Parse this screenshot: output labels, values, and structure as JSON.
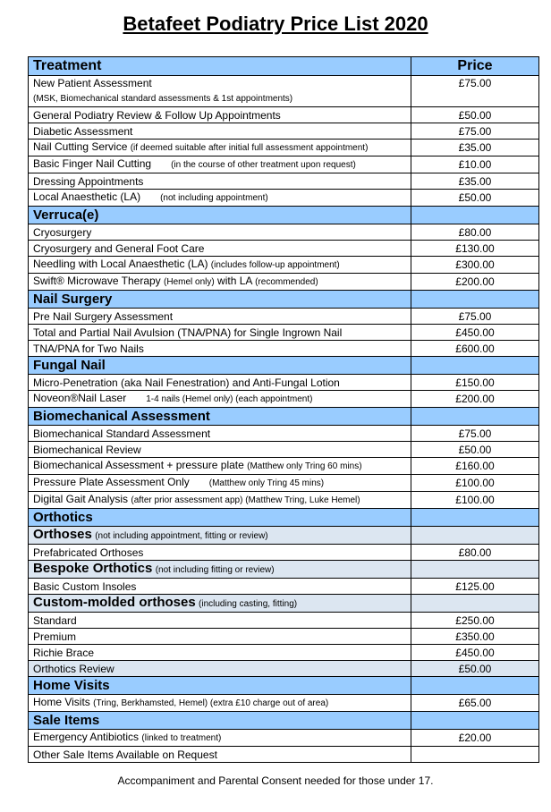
{
  "title": "Betafeet Podiatry Price List 2020",
  "header": {
    "treatment": "Treatment",
    "price": "Price"
  },
  "rows": [
    {
      "type": "item",
      "tall": true,
      "label": "New Patient Assessment",
      "note": "(MSK, Biomechanical standard assessments & 1st appointments)",
      "note_break": true,
      "price": "£75.00"
    },
    {
      "type": "item",
      "label": "General Podiatry Review & Follow Up Appointments",
      "price": "£50.00"
    },
    {
      "type": "item",
      "label": "Diabetic Assessment",
      "price": "£75.00"
    },
    {
      "type": "item",
      "label": "Nail Cutting Service",
      "note": "(if deemed suitable after initial full assessment appointment)",
      "price": "£35.00"
    },
    {
      "type": "item",
      "label": "Basic Finger Nail Cutting",
      "note": "(in the course of other treatment upon request)",
      "gap": true,
      "price": "£10.00"
    },
    {
      "type": "item",
      "label": "Dressing Appointments",
      "price": "£35.00"
    },
    {
      "type": "item",
      "label": "Local Anaesthetic (LA)",
      "note": "(not including appointment)",
      "gap": true,
      "price": "£50.00"
    },
    {
      "type": "section",
      "label": "Verruca(e)"
    },
    {
      "type": "item",
      "label": "Cryosurgery",
      "price": "£80.00"
    },
    {
      "type": "item",
      "label": "Cryosurgery and General Foot Care",
      "price": "£130.00"
    },
    {
      "type": "item",
      "label": "Needling with Local Anaesthetic (LA)",
      "note": "(includes follow-up appointment)",
      "price": "£300.00"
    },
    {
      "type": "item",
      "label": "Swift® Microwave Therapy",
      "note": "(Hemel only)",
      "label2": "with  LA",
      "note2": "(recommended)",
      "price": "£200.00"
    },
    {
      "type": "section",
      "label": "Nail Surgery"
    },
    {
      "type": "item",
      "label": "Pre Nail Surgery Assessment",
      "price": "£75.00"
    },
    {
      "type": "item",
      "label": "Total and Partial Nail Avulsion (TNA/PNA) for Single Ingrown Nail",
      "price": "£450.00"
    },
    {
      "type": "item",
      "label": "TNA/PNA for Two Nails",
      "price": "£600.00"
    },
    {
      "type": "section",
      "label": "Fungal Nail"
    },
    {
      "type": "item",
      "label": "Micro-Penetration (aka Nail Fenestration) and Anti-Fungal Lotion",
      "price": "£150.00"
    },
    {
      "type": "item",
      "label": "Noveon®Nail Laser",
      "note": "1-4 nails (Hemel only)                    (each appointment)",
      "gap": true,
      "price": "£200.00"
    },
    {
      "type": "section",
      "label": "Biomechanical Assessment"
    },
    {
      "type": "item",
      "label": "Biomechanical Standard Assessment",
      "price": "£75.00"
    },
    {
      "type": "item",
      "label": "Biomechanical Review",
      "price": "£50.00"
    },
    {
      "type": "item",
      "label": "Biomechanical Assessment + pressure plate",
      "note": "(Matthew only Tring 60 mins)",
      "price": "£160.00"
    },
    {
      "type": "item",
      "label": "Pressure Plate Assessment Only",
      "note": "(Matthew only Tring 45 mins)",
      "gap": true,
      "price": "£100.00"
    },
    {
      "type": "item",
      "label": "Digital Gait Analysis",
      "note": "(after prior assessment app) (Matthew Tring, Luke Hemel)",
      "price": "£100.00"
    },
    {
      "type": "section",
      "label": "Orthotics"
    },
    {
      "type": "sub",
      "label": "Orthoses",
      "note": "(not including appointment, fitting or review)"
    },
    {
      "type": "item",
      "label": "Prefabricated Orthoses",
      "price": "£80.00"
    },
    {
      "type": "sub",
      "label": "Bespoke Orthotics",
      "note": "(not including fitting or review)"
    },
    {
      "type": "item",
      "label": "Basic Custom Insoles",
      "price": "£125.00"
    },
    {
      "type": "sub",
      "label": "Custom-molded orthoses",
      "note": "(including casting, fitting)"
    },
    {
      "type": "item",
      "label": "Standard",
      "price": "£250.00"
    },
    {
      "type": "item",
      "label": "Premium",
      "price": "£350.00"
    },
    {
      "type": "item",
      "label": "Richie Brace",
      "price": "£450.00"
    },
    {
      "type": "item",
      "shade": true,
      "label": "Orthotics Review",
      "price": "£50.00"
    },
    {
      "type": "section",
      "label": "Home Visits"
    },
    {
      "type": "item",
      "label": "Home Visits",
      "note": "(Tring, Berkhamsted, Hemel) (extra £10 charge out of area)",
      "price": "£65.00"
    },
    {
      "type": "section",
      "label": "Sale Items"
    },
    {
      "type": "item",
      "label": "Emergency Antibiotics",
      "note": "(linked to treatment)",
      "price": "£20.00"
    },
    {
      "type": "item",
      "label": "Other Sale Items Available on Request",
      "price": ""
    }
  ],
  "footer": "Accompaniment and Parental Consent needed for those under 17."
}
